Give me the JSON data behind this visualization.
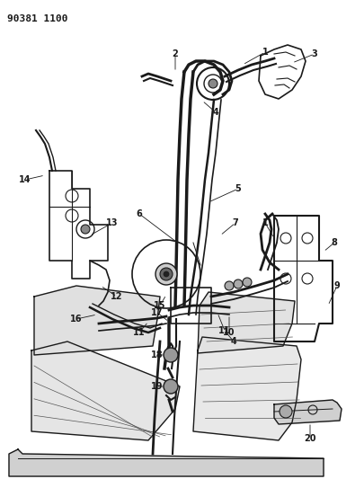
{
  "title_code": "90381 1100",
  "bg_color": "#ffffff",
  "line_color": "#1a1a1a",
  "fig_w": 4.05,
  "fig_h": 5.33,
  "dpi": 100
}
